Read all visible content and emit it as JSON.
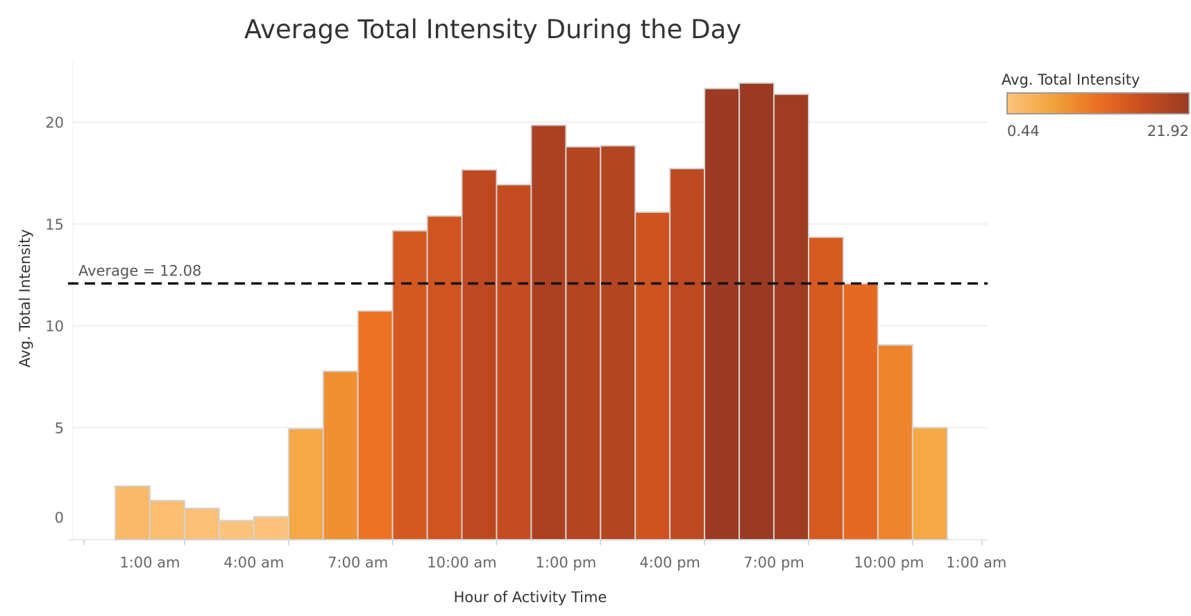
{
  "chart_data": {
    "type": "bar",
    "title": "Average Total Intensity During the Day",
    "xlabel": "Hour of Activity Time",
    "ylabel": "Avg. Total Intensity",
    "ylim": [
      -0.5,
      23
    ],
    "yticks": [
      0,
      5,
      10,
      15,
      20
    ],
    "xlim": [
      -1,
      25.5
    ],
    "xticks": [
      {
        "at": 1,
        "label": "1:00 am"
      },
      {
        "at": 4,
        "label": "4:00 am"
      },
      {
        "at": 7,
        "label": "7:00 am"
      },
      {
        "at": 10,
        "label": "10:00 am"
      },
      {
        "at": 13,
        "label": "1:00 pm"
      },
      {
        "at": 16,
        "label": "4:00 pm"
      },
      {
        "at": 19,
        "label": "7:00 pm"
      },
      {
        "at": 22,
        "label": "10:00 pm"
      },
      {
        "at": 25,
        "label": "1:00 am"
      }
    ],
    "hours": [
      0,
      1,
      2,
      3,
      4,
      5,
      6,
      7,
      8,
      9,
      10,
      11,
      12,
      13,
      14,
      15,
      16,
      17,
      18,
      19,
      20,
      21,
      22,
      23
    ],
    "values": [
      2.13,
      1.42,
      1.04,
      0.44,
      0.63,
      4.95,
      7.77,
      10.73,
      14.67,
      15.39,
      17.66,
      16.93,
      19.85,
      18.79,
      18.84,
      15.58,
      17.72,
      21.65,
      21.92,
      21.37,
      14.35,
      12.07,
      9.06,
      5.0
    ],
    "reference_line": {
      "value": 12.08,
      "label": "Average = 12.08",
      "style": "dashed",
      "color": "#111111"
    },
    "grid": true,
    "legend": {
      "title": "Avg. Total Intensity",
      "placement": "top-right",
      "min_label": "0.44",
      "max_label": "21.92",
      "min": 0.44,
      "max": 21.92,
      "colors": [
        "#fcc37d",
        "#f2a33c",
        "#ec6f22",
        "#c74d20",
        "#9b3a22"
      ]
    }
  }
}
